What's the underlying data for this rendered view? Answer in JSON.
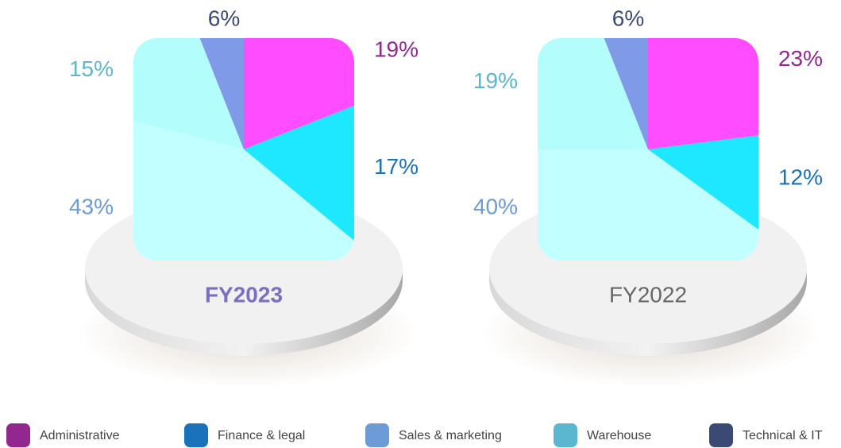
{
  "chart_data": [
    {
      "type": "pie",
      "title": "FY2023",
      "title_color": "#7b6fbf",
      "title_bold": true,
      "values": [
        19,
        17,
        43,
        15,
        6
      ],
      "value_labels": [
        "19%",
        "17%",
        "43%",
        "15%",
        "6%"
      ],
      "slice_colors": [
        "#ff4cff",
        "#1ee8ff",
        "#c2ffff",
        "#b4fdfd",
        "#7f9be8"
      ]
    },
    {
      "type": "pie",
      "title": "FY2022",
      "title_color": "#666666",
      "title_bold": false,
      "values": [
        23,
        12,
        40,
        19,
        6
      ],
      "value_labels": [
        "23%",
        "12%",
        "40%",
        "19%",
        "6%"
      ],
      "slice_colors": [
        "#ff4cff",
        "#1ee8ff",
        "#c2ffff",
        "#b4fdfd",
        "#7f9be8"
      ]
    }
  ],
  "legend": {
    "names": [
      "Administrative",
      "Finance & legal",
      "Sales & marketing",
      "Warehouse",
      "Technical & IT"
    ],
    "colors": [
      "#92278f",
      "#1a72bb",
      "#6d9bd6",
      "#5bb7d0",
      "#3a4a75"
    ]
  }
}
